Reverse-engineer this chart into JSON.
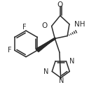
{
  "bg_color": "#ffffff",
  "line_color": "#2a2a2a",
  "line_width": 1.1,
  "font_size": 6.5,
  "fig_width": 1.27,
  "fig_height": 1.22,
  "dpi": 100,
  "xlim": [
    0,
    127
  ],
  "ylim": [
    0,
    122
  ]
}
